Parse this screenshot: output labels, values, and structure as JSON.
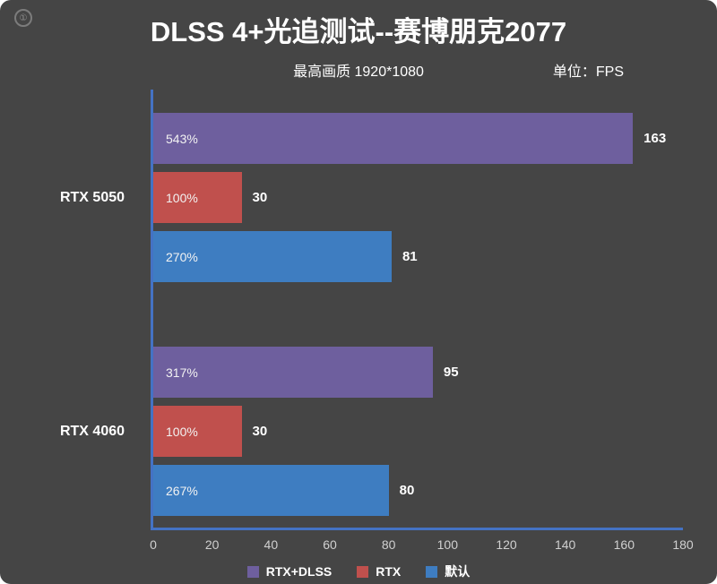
{
  "title": "DLSS 4+光追测试--赛博朋克2077",
  "subtitle": "最高画质 1920*1080",
  "unit_label": "单位：FPS",
  "watermark_glyph": "①",
  "colors": {
    "background": "#454545",
    "axis": "#4472c4",
    "dlss": "#6e5f9e",
    "rtx": "#c0504d",
    "default": "#3e7dc1",
    "tick_text": "#d0d0d0",
    "text": "#ffffff"
  },
  "chart_data": {
    "type": "bar",
    "orientation": "horizontal",
    "title": "DLSS 4+光追测试--赛博朋克2077",
    "subtitle": "最高画质 1920*1080",
    "unit": "FPS",
    "categories": [
      "RTX 5050",
      "RTX 4060"
    ],
    "series": [
      {
        "name": "RTX+DLSS",
        "color_key": "dlss",
        "values": [
          163,
          95
        ],
        "percent_labels": [
          "543%",
          "317%"
        ]
      },
      {
        "name": "RTX",
        "color_key": "rtx",
        "values": [
          30,
          30
        ],
        "percent_labels": [
          "100%",
          "100%"
        ]
      },
      {
        "name": "默认",
        "color_key": "default",
        "values": [
          81,
          80
        ],
        "percent_labels": [
          "270%",
          "267%"
        ]
      }
    ],
    "xlim": [
      0,
      180
    ],
    "x_ticks": [
      0,
      20,
      40,
      60,
      80,
      100,
      120,
      140,
      160,
      180
    ],
    "grid": false,
    "legend_position": "bottom"
  }
}
